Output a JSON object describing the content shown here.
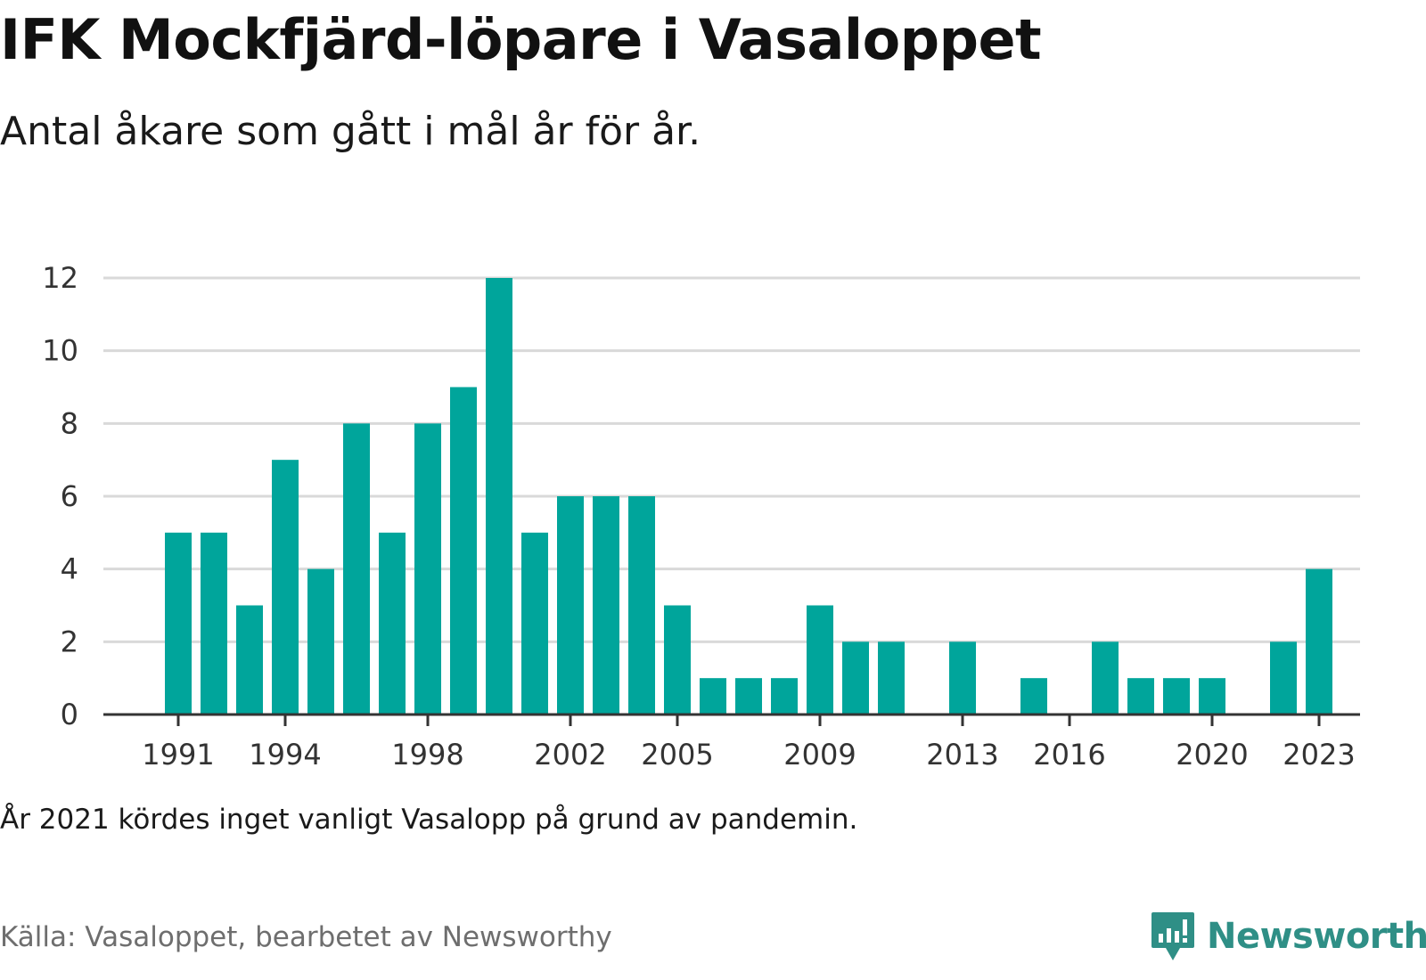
{
  "header": {
    "title": "IFK Mockfjärd-löpare i Vasaloppet",
    "subtitle": "Antal åkare som gått i mål år för år."
  },
  "footer": {
    "note": "År 2021 kördes inget vanligt Vasalopp på grund av pandemin.",
    "source": "Källa: Vasaloppet, bearbetet av Newsworthy",
    "brand": "Newsworthy"
  },
  "colors": {
    "bar": "#00a59b",
    "grid": "#d9d9d9",
    "axis": "#333333",
    "brand": "#2f8f86"
  },
  "icons": {
    "brand_logo": "chart-speech-bubble-icon"
  },
  "chart_data": {
    "type": "bar",
    "title": "IFK Mockfjärd-löpare i Vasaloppet",
    "subtitle": "Antal åkare som gått i mål år för år.",
    "xlabel": "",
    "ylabel": "",
    "categories": [
      "1991",
      "1992",
      "1993",
      "1994",
      "1995",
      "1996",
      "1997",
      "1998",
      "1999",
      "2000",
      "2001",
      "2002",
      "2003",
      "2004",
      "2005",
      "2006",
      "2007",
      "2008",
      "2009",
      "2010",
      "2011",
      "2012",
      "2013",
      "2014",
      "2015",
      "2016",
      "2017",
      "2018",
      "2019",
      "2020",
      "2021",
      "2022",
      "2023"
    ],
    "values": [
      5,
      5,
      3,
      7,
      4,
      8,
      5,
      8,
      9,
      12,
      5,
      6,
      6,
      6,
      3,
      1,
      1,
      1,
      3,
      2,
      2,
      0,
      2,
      0,
      1,
      0,
      2,
      1,
      1,
      1,
      0,
      2,
      4
    ],
    "x_tick_labels": [
      "1991",
      "1994",
      "1998",
      "2002",
      "2005",
      "2009",
      "2013",
      "2016",
      "2020",
      "2023"
    ],
    "y_ticks": [
      0,
      2,
      4,
      6,
      8,
      10,
      12
    ],
    "ylim": [
      0,
      12
    ],
    "grid": true,
    "legend": "none"
  }
}
